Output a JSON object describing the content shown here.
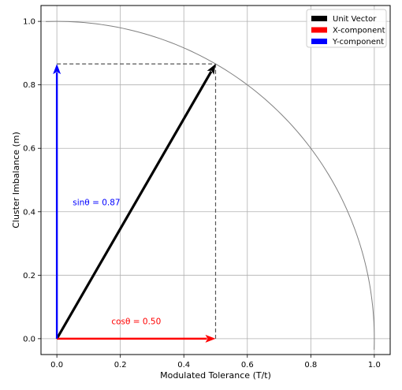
{
  "chart_data": {
    "type": "line",
    "title": "",
    "xlabel": "Modulated Tolerance (T/t)",
    "ylabel": "Cluster Imbalance (m)",
    "xlim": [
      -0.05,
      1.05
    ],
    "ylim": [
      -0.05,
      1.05
    ],
    "xticks": [
      0.0,
      0.2,
      0.4,
      0.6,
      0.8,
      1.0
    ],
    "yticks": [
      0.0,
      0.2,
      0.4,
      0.6,
      0.8,
      1.0
    ],
    "xtick_labels": [
      "0.0",
      "0.2",
      "0.4",
      "0.6",
      "0.8",
      "1.0"
    ],
    "ytick_labels": [
      "0.0",
      "0.2",
      "0.4",
      "0.6",
      "0.8",
      "1.0"
    ],
    "grid": true,
    "legend_position": "top-right",
    "unit_circle": {
      "center": [
        0,
        0
      ],
      "radius": 1.0,
      "color": "#808080"
    },
    "vectors": [
      {
        "name": "Unit Vector",
        "from": [
          0,
          0
        ],
        "to": [
          0.5,
          0.866
        ],
        "color": "#000000"
      },
      {
        "name": "X-component",
        "from": [
          0,
          0
        ],
        "to": [
          0.5,
          0
        ],
        "color": "#ff0000"
      },
      {
        "name": "Y-component",
        "from": [
          0,
          0
        ],
        "to": [
          0,
          0.866
        ],
        "color": "#0000ff"
      }
    ],
    "guides": [
      {
        "from": [
          0.5,
          0
        ],
        "to": [
          0.5,
          0.866
        ]
      },
      {
        "from": [
          0,
          0.866
        ],
        "to": [
          0.5,
          0.866
        ]
      }
    ],
    "annotations": [
      {
        "text": "sinθ = 0.87",
        "x": 0.05,
        "y": 0.43,
        "color": "#0000ff"
      },
      {
        "text": "cosθ = 0.50",
        "x": 0.25,
        "y": 0.055,
        "color": "#ff0000"
      }
    ]
  }
}
